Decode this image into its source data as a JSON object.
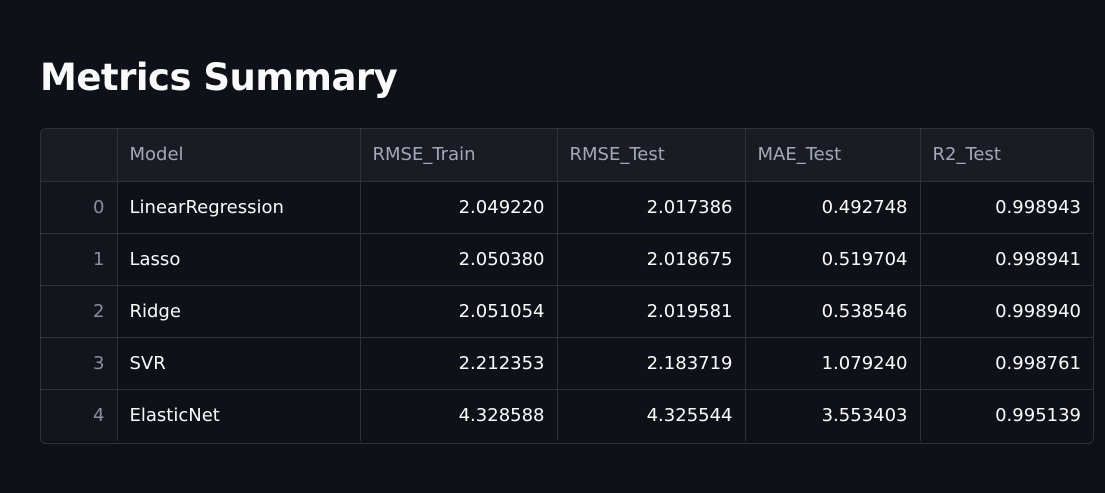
{
  "page": {
    "title": "Metrics Summary"
  },
  "table": {
    "columns": [
      "",
      "Model",
      "RMSE_Train",
      "RMSE_Test",
      "MAE_Test",
      "R2_Test"
    ],
    "rows": [
      {
        "index": "0",
        "model": "LinearRegression",
        "rmse_train": "2.049220",
        "rmse_test": "2.017386",
        "mae_test": "0.492748",
        "r2_test": "0.998943"
      },
      {
        "index": "1",
        "model": "Lasso",
        "rmse_train": "2.050380",
        "rmse_test": "2.018675",
        "mae_test": "0.519704",
        "r2_test": "0.998941"
      },
      {
        "index": "2",
        "model": "Ridge",
        "rmse_train": "2.051054",
        "rmse_test": "2.019581",
        "mae_test": "0.538546",
        "r2_test": "0.998940"
      },
      {
        "index": "3",
        "model": "SVR",
        "rmse_train": "2.212353",
        "rmse_test": "2.183719",
        "mae_test": "1.079240",
        "r2_test": "0.998761"
      },
      {
        "index": "4",
        "model": "ElasticNet",
        "rmse_train": "4.328588",
        "rmse_test": "4.325544",
        "mae_test": "3.553403",
        "r2_test": "0.995139"
      }
    ]
  },
  "colors": {
    "background": "#0e1117",
    "header_background": "#1a1c24",
    "border": "#2e323c",
    "text": "#fafafa",
    "muted_text": "#a3a8b8"
  }
}
